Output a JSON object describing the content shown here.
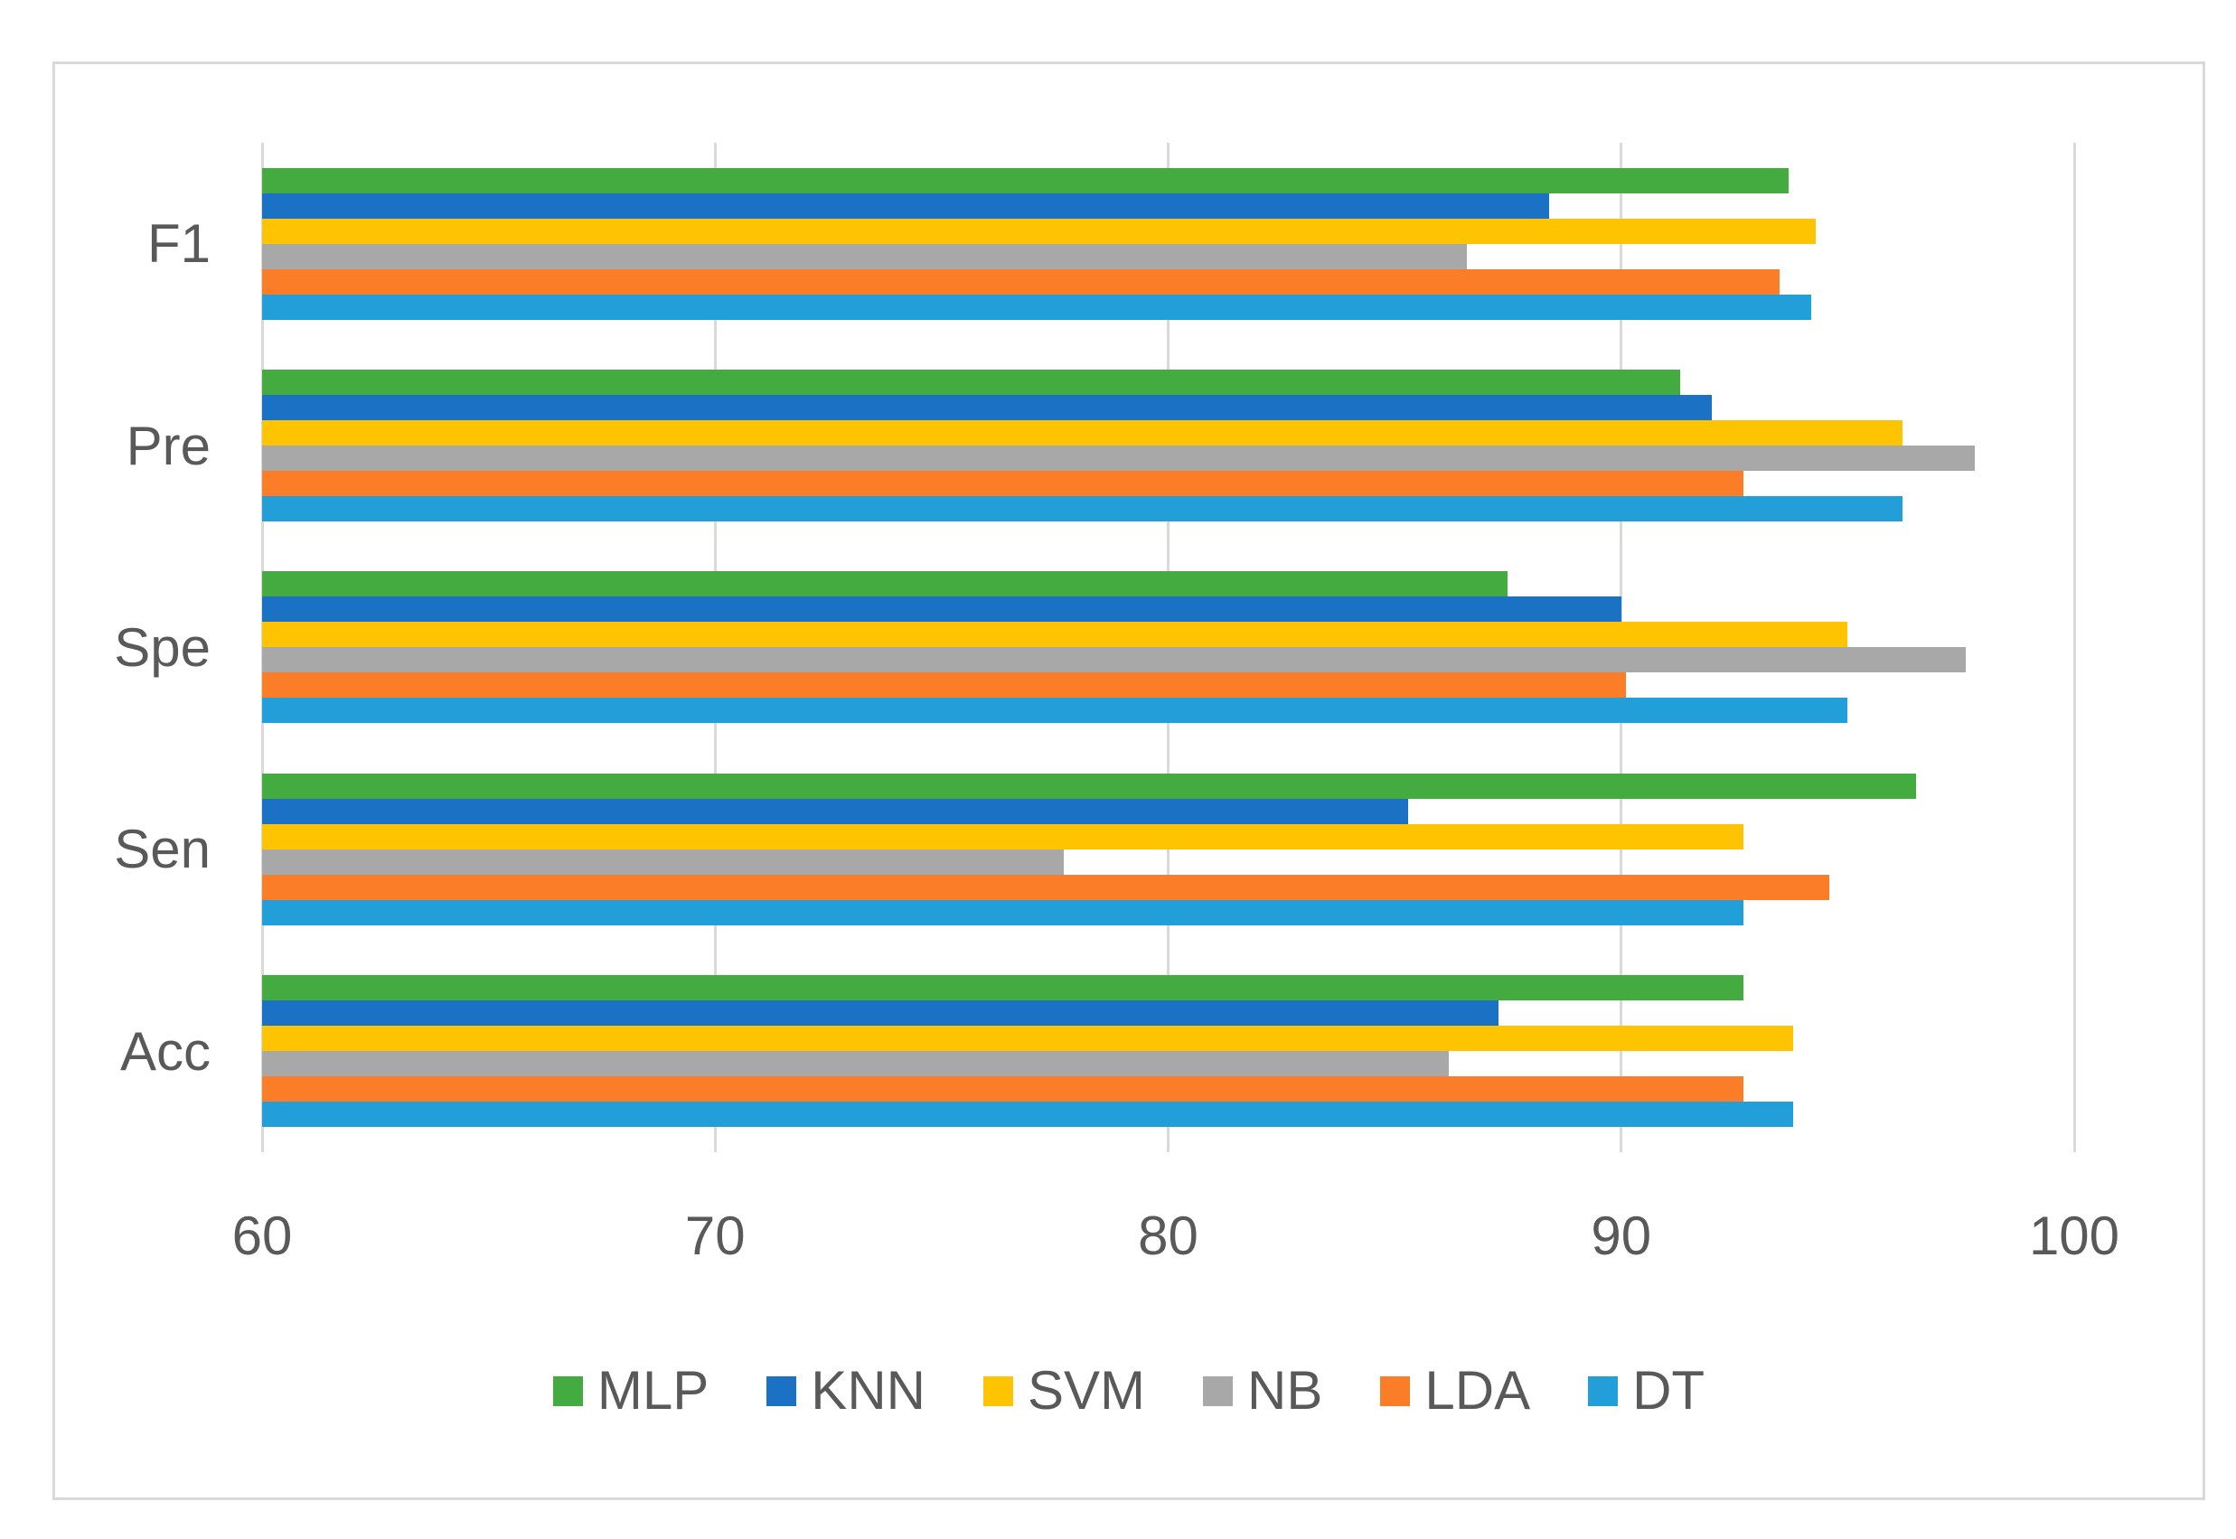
{
  "chart_data": {
    "type": "bar",
    "orientation": "horizontal",
    "title": "",
    "xlabel": "",
    "ylabel": "",
    "categories": [
      "F1",
      "Pre",
      "Spe",
      "Sen",
      "Acc"
    ],
    "series": [
      {
        "name": "MLP",
        "color": "#44AB40",
        "values": [
          93.7,
          91.3,
          87.5,
          96.5,
          92.7
        ]
      },
      {
        "name": "KNN",
        "color": "#1B72C5",
        "values": [
          88.4,
          92.0,
          90.0,
          85.3,
          87.3
        ]
      },
      {
        "name": "SVM",
        "color": "#FEC301",
        "values": [
          94.3,
          96.2,
          95.0,
          92.7,
          93.8
        ]
      },
      {
        "name": "NB",
        "color": "#A8A8A8",
        "values": [
          86.6,
          97.8,
          97.6,
          77.7,
          86.2
        ]
      },
      {
        "name": "LDA",
        "color": "#FB7D27",
        "values": [
          93.5,
          92.7,
          90.1,
          94.6,
          92.7
        ]
      },
      {
        "name": "DT",
        "color": "#229ED9",
        "values": [
          94.2,
          96.2,
          95.0,
          92.7,
          93.8
        ]
      }
    ],
    "x_axis": {
      "min": 60,
      "max": 100,
      "ticks": [
        60,
        70,
        80,
        90,
        100
      ],
      "tick_labels": [
        "60",
        "70",
        "80",
        "90",
        "100"
      ]
    },
    "legend": {
      "position": "bottom",
      "entries": [
        "MLP",
        "KNN",
        "SVM",
        "NB",
        "LDA",
        "DT"
      ]
    },
    "grid": true
  },
  "styles": {
    "grid_color": "#D9D9D9",
    "frame_border_color": "#D9D9D9",
    "text_color": "#595959",
    "background": "#FFFFFF"
  }
}
